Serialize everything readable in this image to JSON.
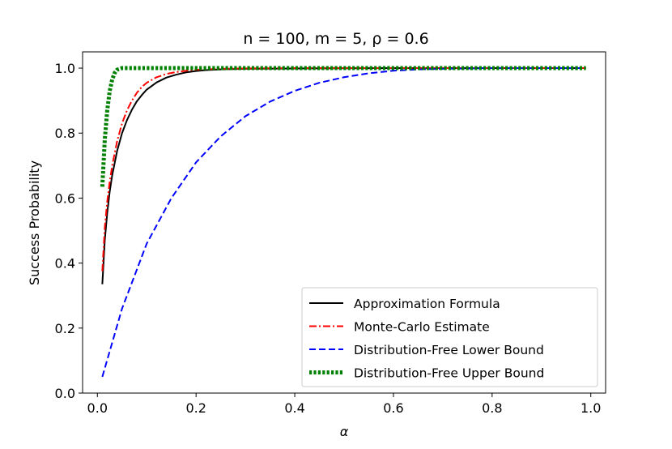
{
  "chart_data": {
    "type": "line",
    "title": "n = 100, m = 5, ρ = 0.6",
    "xlabel": "α",
    "ylabel": "Success Probability",
    "xlim": [
      -0.03,
      1.03
    ],
    "ylim": [
      0.0,
      1.05
    ],
    "xticks": [
      0.0,
      0.2,
      0.4,
      0.6,
      0.8,
      1.0
    ],
    "xtick_labels": [
      "0.0",
      "0.2",
      "0.4",
      "0.6",
      "0.8",
      "1.0"
    ],
    "yticks": [
      0.0,
      0.2,
      0.4,
      0.6,
      0.8,
      1.0
    ],
    "ytick_labels": [
      "0.0",
      "0.2",
      "0.4",
      "0.6",
      "0.8",
      "1.0"
    ],
    "legend_position": "lower-right",
    "series": [
      {
        "name": "Approximation Formula",
        "color": "#000000",
        "style": "solid",
        "x": [
          0.01,
          0.015,
          0.02,
          0.025,
          0.03,
          0.04,
          0.05,
          0.06,
          0.07,
          0.08,
          0.09,
          0.1,
          0.12,
          0.14,
          0.16,
          0.18,
          0.2,
          0.22,
          0.25,
          0.3,
          0.4,
          0.6,
          0.8,
          0.99
        ],
        "values": [
          0.335,
          0.47,
          0.555,
          0.62,
          0.67,
          0.745,
          0.8,
          0.84,
          0.872,
          0.898,
          0.917,
          0.934,
          0.956,
          0.971,
          0.98,
          0.987,
          0.991,
          0.994,
          0.996,
          0.998,
          0.999,
          1.0,
          1.0,
          1.0
        ]
      },
      {
        "name": "Monte-Carlo Estimate",
        "color": "#ff0000",
        "style": "dashdot",
        "x": [
          0.01,
          0.015,
          0.02,
          0.025,
          0.03,
          0.04,
          0.05,
          0.06,
          0.07,
          0.08,
          0.09,
          0.1,
          0.12,
          0.14,
          0.16,
          0.18,
          0.2,
          0.25,
          0.3,
          0.4,
          0.6,
          0.8,
          0.99
        ],
        "values": [
          0.375,
          0.51,
          0.59,
          0.65,
          0.7,
          0.775,
          0.83,
          0.87,
          0.9,
          0.924,
          0.942,
          0.955,
          0.972,
          0.982,
          0.988,
          0.992,
          0.995,
          0.998,
          0.999,
          1.0,
          1.0,
          1.0,
          1.0
        ]
      },
      {
        "name": "Distribution-Free Lower Bound",
        "color": "#0000ff",
        "style": "dashed",
        "x": [
          0.01,
          0.05,
          0.1,
          0.15,
          0.2,
          0.25,
          0.3,
          0.35,
          0.4,
          0.45,
          0.5,
          0.55,
          0.6,
          0.65,
          0.7,
          0.8,
          0.9,
          0.99
        ],
        "values": [
          0.05,
          0.26,
          0.46,
          0.6,
          0.71,
          0.79,
          0.852,
          0.897,
          0.93,
          0.955,
          0.972,
          0.984,
          0.992,
          0.996,
          0.998,
          1.0,
          1.0,
          1.0
        ]
      },
      {
        "name": "Distribution-Free Upper Bound",
        "color": "#008000",
        "style": "dotted",
        "x": [
          0.01,
          0.015,
          0.02,
          0.025,
          0.03,
          0.035,
          0.04,
          0.05,
          0.06,
          0.08,
          0.1,
          0.2,
          0.4,
          0.6,
          0.8,
          0.99
        ],
        "values": [
          0.635,
          0.78,
          0.87,
          0.93,
          0.965,
          0.985,
          0.995,
          1.0,
          1.0,
          1.0,
          1.0,
          1.0,
          1.0,
          1.0,
          1.0,
          1.0
        ]
      }
    ]
  }
}
